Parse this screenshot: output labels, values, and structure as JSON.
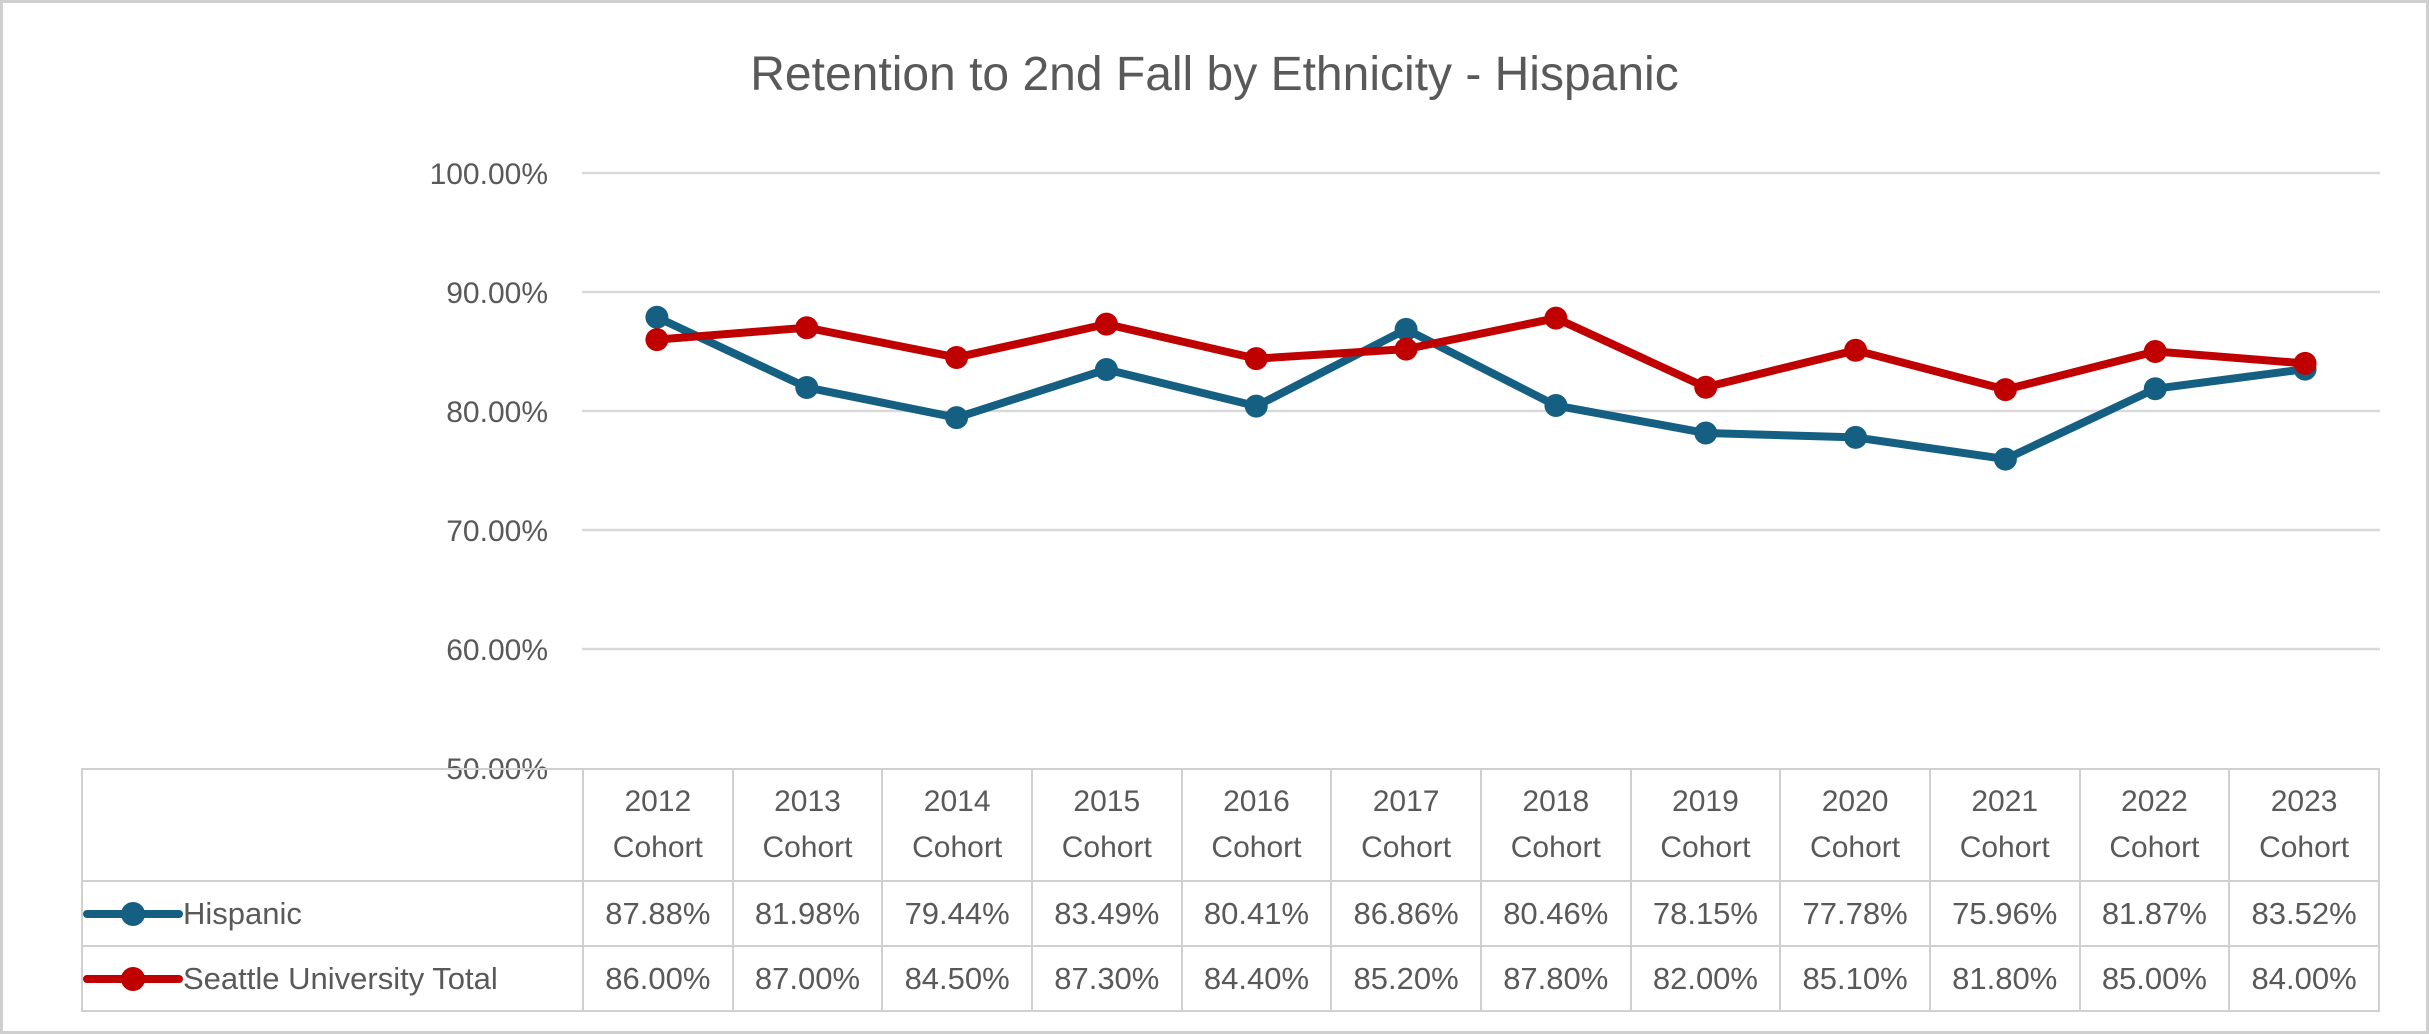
{
  "window": {
    "background": "#FFFFFF",
    "frame_border_color": "#CFCFCF"
  },
  "colors": {
    "text": "#595959",
    "gridline": "#D9D9D9",
    "table_border": "#D0D0D0",
    "series_hispanic": "#156082",
    "series_total": "#C00000"
  },
  "chart_data": {
    "type": "line",
    "title": "Retention to 2nd Fall by Ethnicity - Hispanic",
    "categories": [
      "2012 Cohort",
      "2013 Cohort",
      "2014 Cohort",
      "2015 Cohort",
      "2016 Cohort",
      "2017 Cohort",
      "2018 Cohort",
      "2019 Cohort",
      "2020 Cohort",
      "2021 Cohort",
      "2022 Cohort",
      "2023 Cohort"
    ],
    "series": [
      {
        "name": "Hispanic",
        "color": "#156082",
        "values": [
          87.88,
          81.98,
          79.44,
          83.49,
          80.41,
          86.86,
          80.46,
          78.15,
          77.78,
          75.96,
          81.87,
          83.52
        ]
      },
      {
        "name": "Seattle University Total",
        "color": "#C00000",
        "values": [
          86.0,
          87.0,
          84.5,
          87.3,
          84.4,
          85.2,
          87.8,
          82.0,
          85.1,
          81.8,
          85.0,
          84.0
        ]
      }
    ],
    "ylim": [
      50,
      100
    ],
    "yticks": [
      100,
      90,
      80,
      70,
      60,
      50
    ],
    "ytick_labels": [
      "100.00%",
      "90.00%",
      "80.00%",
      "70.00%",
      "60.00%",
      "50.00%"
    ],
    "value_format": "percent_2dp",
    "grid": true,
    "legend_position": "data-table-left",
    "xlabel": "",
    "ylabel": ""
  }
}
